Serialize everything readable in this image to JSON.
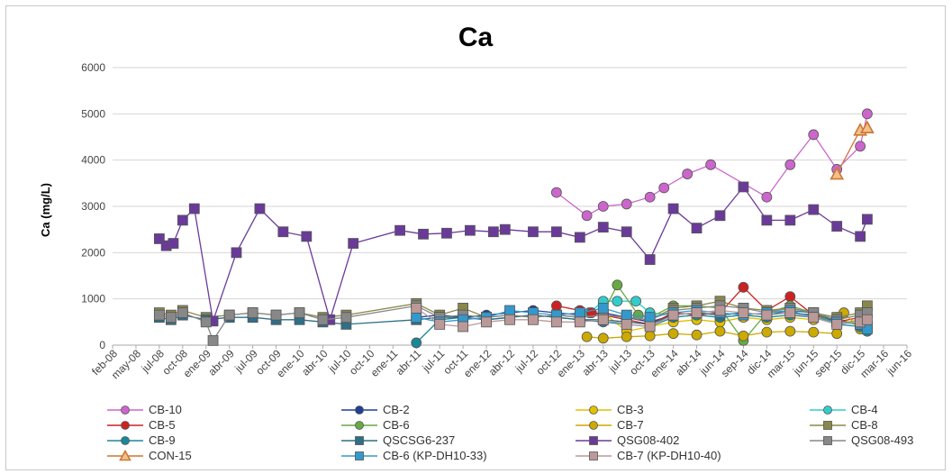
{
  "chart_data": {
    "type": "line",
    "title": "Ca",
    "ylabel": "Ca (mg/L)",
    "xlabel": "",
    "ylim": [
      0,
      6000
    ],
    "yticks": [
      0,
      1000,
      2000,
      3000,
      4000,
      5000,
      6000
    ],
    "xticks": [
      "feb-08",
      "may-08",
      "jul-08",
      "oct-08",
      "ene-09",
      "abr-09",
      "jul-09",
      "oct-09",
      "ene-10",
      "abr-10",
      "jul-10",
      "oct-10",
      "ene-11",
      "abr-11",
      "jul-11",
      "oct-11",
      "ene-12",
      "abr-12",
      "jul-12",
      "oct-12",
      "ene-13",
      "abr-13",
      "jul-13",
      "oct-13",
      "ene-14",
      "abr-14",
      "jun-14",
      "sep-14",
      "dic-14",
      "mar-15",
      "jun-15",
      "sep-15",
      "dic-15",
      "mar-16",
      "jun-16"
    ],
    "grid": true,
    "legend_position": "bottom",
    "series": [
      {
        "name": "CB-10",
        "color": "#cc66cc",
        "marker": "circle",
        "points": [
          [
            19,
            3300
          ],
          [
            20.3,
            2800
          ],
          [
            21,
            3000
          ],
          [
            22,
            3050
          ],
          [
            23,
            3200
          ],
          [
            23.6,
            3400
          ],
          [
            24.6,
            3700
          ],
          [
            25.6,
            3900
          ],
          [
            28,
            3200
          ],
          [
            29,
            3900
          ],
          [
            30,
            4550
          ],
          [
            31,
            3800
          ],
          [
            32,
            4300
          ],
          [
            32.3,
            5000
          ]
        ]
      },
      {
        "name": "CB-2",
        "color": "#1f3f99",
        "marker": "circle",
        "points": [
          [
            13,
            600
          ],
          [
            14,
            650
          ],
          [
            15,
            600
          ],
          [
            16,
            650
          ],
          [
            17,
            700
          ],
          [
            18,
            750
          ],
          [
            19,
            700
          ],
          [
            20,
            650
          ],
          [
            21,
            700
          ],
          [
            22,
            600
          ],
          [
            23,
            500
          ],
          [
            24,
            650
          ],
          [
            25,
            700
          ],
          [
            26,
            650
          ],
          [
            27,
            700
          ],
          [
            28,
            650
          ],
          [
            29,
            700
          ],
          [
            30,
            650
          ],
          [
            31,
            550
          ],
          [
            32,
            450
          ],
          [
            32.3,
            350
          ]
        ]
      },
      {
        "name": "CB-3",
        "color": "#e0c000",
        "marker": "circle",
        "points": [
          [
            21,
            700
          ],
          [
            22,
            300
          ],
          [
            23,
            400
          ],
          [
            24,
            500
          ],
          [
            25,
            550
          ],
          [
            26,
            500
          ],
          [
            27,
            600
          ],
          [
            28,
            550
          ],
          [
            29,
            600
          ],
          [
            30,
            550
          ],
          [
            31,
            600
          ],
          [
            32,
            400
          ],
          [
            32.3,
            500
          ]
        ]
      },
      {
        "name": "CB-4",
        "color": "#33cccc",
        "marker": "circle",
        "points": [
          [
            20.4,
            700
          ],
          [
            21,
            950
          ],
          [
            21.6,
            950
          ],
          [
            22.4,
            950
          ],
          [
            23,
            700
          ],
          [
            24,
            650
          ],
          [
            25,
            700
          ]
        ]
      },
      {
        "name": "CB-5",
        "color": "#cc2222",
        "marker": "circle",
        "points": [
          [
            19,
            850
          ],
          [
            20,
            750
          ],
          [
            20.5,
            700
          ],
          [
            21,
            650
          ],
          [
            22,
            550
          ],
          [
            23,
            450
          ],
          [
            24,
            700
          ],
          [
            25,
            650
          ],
          [
            26,
            700
          ],
          [
            27,
            1250
          ],
          [
            28,
            750
          ],
          [
            29,
            1050
          ],
          [
            30,
            650
          ],
          [
            31,
            500
          ],
          [
            32,
            600
          ],
          [
            32.3,
            400
          ]
        ]
      },
      {
        "name": "CB-6",
        "color": "#66aa44",
        "marker": "circle",
        "points": [
          [
            21,
            700
          ],
          [
            21.6,
            1300
          ],
          [
            22.5,
            650
          ],
          [
            23,
            600
          ],
          [
            24,
            850
          ],
          [
            25,
            850
          ],
          [
            26,
            800
          ],
          [
            27,
            100
          ],
          [
            28,
            700
          ],
          [
            29,
            850
          ],
          [
            30,
            700
          ],
          [
            31,
            450
          ],
          [
            32,
            550
          ],
          [
            32.3,
            400
          ]
        ]
      },
      {
        "name": "CB-7",
        "color": "#ccaa00",
        "marker": "circle",
        "points": [
          [
            20.3,
            180
          ],
          [
            21,
            150
          ],
          [
            22,
            180
          ],
          [
            23,
            200
          ],
          [
            24,
            250
          ],
          [
            25,
            220
          ],
          [
            26,
            300
          ],
          [
            27,
            200
          ],
          [
            28,
            280
          ],
          [
            29,
            300
          ],
          [
            30,
            280
          ],
          [
            31,
            250
          ],
          [
            31.3,
            700
          ],
          [
            32,
            350
          ],
          [
            32.3,
            300
          ]
        ]
      },
      {
        "name": "CB-8",
        "color": "#88884a",
        "marker": "square",
        "points": [
          [
            2,
            700
          ],
          [
            2.5,
            650
          ],
          [
            3,
            750
          ],
          [
            4,
            600
          ],
          [
            5,
            650
          ],
          [
            6,
            700
          ],
          [
            7,
            650
          ],
          [
            8,
            700
          ],
          [
            9,
            600
          ],
          [
            10,
            650
          ],
          [
            13,
            900
          ],
          [
            14,
            650
          ],
          [
            15,
            800
          ],
          [
            16,
            600
          ],
          [
            17,
            650
          ],
          [
            18,
            600
          ],
          [
            19,
            650
          ],
          [
            20,
            600
          ],
          [
            21,
            650
          ],
          [
            22,
            600
          ],
          [
            23,
            550
          ],
          [
            24,
            800
          ],
          [
            25,
            850
          ],
          [
            26,
            950
          ],
          [
            27,
            800
          ],
          [
            28,
            750
          ],
          [
            29,
            800
          ],
          [
            30,
            700
          ],
          [
            31,
            600
          ],
          [
            32,
            700
          ],
          [
            32.3,
            850
          ]
        ]
      },
      {
        "name": "CB-9",
        "color": "#1a8899",
        "marker": "circle",
        "points": [
          [
            13,
            50
          ],
          [
            14,
            550
          ],
          [
            15,
            600
          ],
          [
            16,
            550
          ],
          [
            17,
            600
          ],
          [
            18,
            650
          ],
          [
            19,
            600
          ],
          [
            20,
            550
          ],
          [
            21,
            500
          ],
          [
            22,
            450
          ],
          [
            23,
            400
          ],
          [
            24,
            600
          ],
          [
            25,
            650
          ],
          [
            26,
            600
          ],
          [
            27,
            650
          ],
          [
            28,
            600
          ],
          [
            29,
            650
          ],
          [
            30,
            600
          ],
          [
            31,
            450
          ],
          [
            32,
            400
          ],
          [
            32.3,
            300
          ]
        ]
      },
      {
        "name": "QSCSG6-237",
        "color": "#2f6f88",
        "marker": "square",
        "points": [
          [
            2,
            600
          ],
          [
            2.5,
            550
          ],
          [
            3,
            650
          ],
          [
            4,
            550
          ],
          [
            5,
            600
          ],
          [
            6,
            600
          ],
          [
            7,
            550
          ],
          [
            8,
            550
          ],
          [
            9,
            500
          ],
          [
            10,
            450
          ],
          [
            13,
            550
          ],
          [
            14,
            600
          ],
          [
            15,
            600
          ],
          [
            16,
            550
          ],
          [
            17,
            600
          ],
          [
            18,
            650
          ],
          [
            19,
            600
          ],
          [
            20,
            550
          ],
          [
            21,
            550
          ],
          [
            22,
            500
          ],
          [
            23,
            450
          ],
          [
            24,
            650
          ],
          [
            25,
            700
          ],
          [
            26,
            650
          ],
          [
            27,
            700
          ],
          [
            28,
            650
          ],
          [
            29,
            750
          ],
          [
            30,
            700
          ],
          [
            31,
            500
          ],
          [
            32,
            450
          ],
          [
            32.3,
            400
          ]
        ]
      },
      {
        "name": "QSG08-402",
        "color": "#6a3a99",
        "marker": "square",
        "points": [
          [
            2,
            2300
          ],
          [
            2.3,
            2150
          ],
          [
            2.6,
            2200
          ],
          [
            3,
            2700
          ],
          [
            3.5,
            2950
          ],
          [
            4.3,
            520
          ],
          [
            5.3,
            2000
          ],
          [
            6.3,
            2950
          ],
          [
            7.3,
            2450
          ],
          [
            8.3,
            2350
          ],
          [
            9.3,
            550
          ],
          [
            10.3,
            2200
          ],
          [
            12.3,
            2480
          ],
          [
            13.3,
            2400
          ],
          [
            14.3,
            2420
          ],
          [
            15.3,
            2480
          ],
          [
            16.3,
            2450
          ],
          [
            16.8,
            2500
          ],
          [
            18,
            2450
          ],
          [
            19,
            2450
          ],
          [
            20,
            2330
          ],
          [
            21,
            2550
          ],
          [
            22,
            2450
          ],
          [
            23,
            1850
          ],
          [
            24,
            2950
          ],
          [
            25,
            2530
          ],
          [
            26,
            2800
          ],
          [
            27,
            3420
          ],
          [
            28,
            2700
          ],
          [
            29,
            2700
          ],
          [
            30,
            2930
          ],
          [
            31,
            2570
          ],
          [
            32,
            2350
          ],
          [
            32.3,
            2720
          ]
        ]
      },
      {
        "name": "QSG08-493",
        "color": "#888888",
        "marker": "square",
        "points": [
          [
            2,
            650
          ],
          [
            2.5,
            600
          ],
          [
            3,
            700
          ],
          [
            4,
            500
          ],
          [
            4.3,
            100
          ],
          [
            5,
            650
          ],
          [
            6,
            700
          ],
          [
            7,
            650
          ],
          [
            8,
            700
          ],
          [
            9,
            550
          ],
          [
            10,
            600
          ],
          [
            13,
            850
          ],
          [
            14,
            600
          ],
          [
            15,
            650
          ],
          [
            16,
            600
          ],
          [
            17,
            650
          ],
          [
            18,
            600
          ],
          [
            19,
            650
          ],
          [
            20,
            600
          ],
          [
            21,
            650
          ],
          [
            22,
            600
          ],
          [
            23,
            550
          ],
          [
            24,
            750
          ],
          [
            25,
            800
          ],
          [
            26,
            850
          ],
          [
            27,
            800
          ],
          [
            28,
            700
          ],
          [
            29,
            800
          ],
          [
            30,
            700
          ],
          [
            31,
            550
          ],
          [
            32,
            650
          ],
          [
            32.3,
            700
          ]
        ]
      },
      {
        "name": "CON-15",
        "color": "#cc7733",
        "marker": "triangle",
        "points": [
          [
            31,
            3700
          ],
          [
            32,
            4650
          ],
          [
            32.3,
            4700
          ]
        ]
      },
      {
        "name": "CB-6 (KP-DH10-33)",
        "color": "#3399cc",
        "marker": "square",
        "points": [
          [
            13,
            600
          ],
          [
            14,
            500
          ],
          [
            15,
            550
          ],
          [
            16,
            600
          ],
          [
            17,
            750
          ],
          [
            18,
            700
          ],
          [
            19,
            650
          ],
          [
            20,
            700
          ],
          [
            21,
            800
          ],
          [
            22,
            650
          ],
          [
            23,
            600
          ],
          [
            24,
            700
          ],
          [
            25,
            750
          ],
          [
            26,
            700
          ],
          [
            27,
            650
          ],
          [
            28,
            700
          ],
          [
            29,
            750
          ],
          [
            30,
            600
          ],
          [
            31,
            500
          ],
          [
            32,
            450
          ],
          [
            32.3,
            350
          ]
        ]
      },
      {
        "name": "CB-7 (KP-DH10-40)",
        "color": "#bb9999",
        "marker": "square",
        "points": [
          [
            13,
            800
          ],
          [
            14,
            450
          ],
          [
            15,
            400
          ],
          [
            16,
            500
          ],
          [
            17,
            550
          ],
          [
            18,
            550
          ],
          [
            19,
            500
          ],
          [
            20,
            500
          ],
          [
            21,
            550
          ],
          [
            22,
            450
          ],
          [
            23,
            400
          ],
          [
            24,
            650
          ],
          [
            25,
            700
          ],
          [
            26,
            750
          ],
          [
            27,
            700
          ],
          [
            28,
            650
          ],
          [
            29,
            700
          ],
          [
            30,
            600
          ],
          [
            31,
            450
          ],
          [
            32,
            500
          ],
          [
            32.3,
            550
          ]
        ]
      }
    ]
  }
}
